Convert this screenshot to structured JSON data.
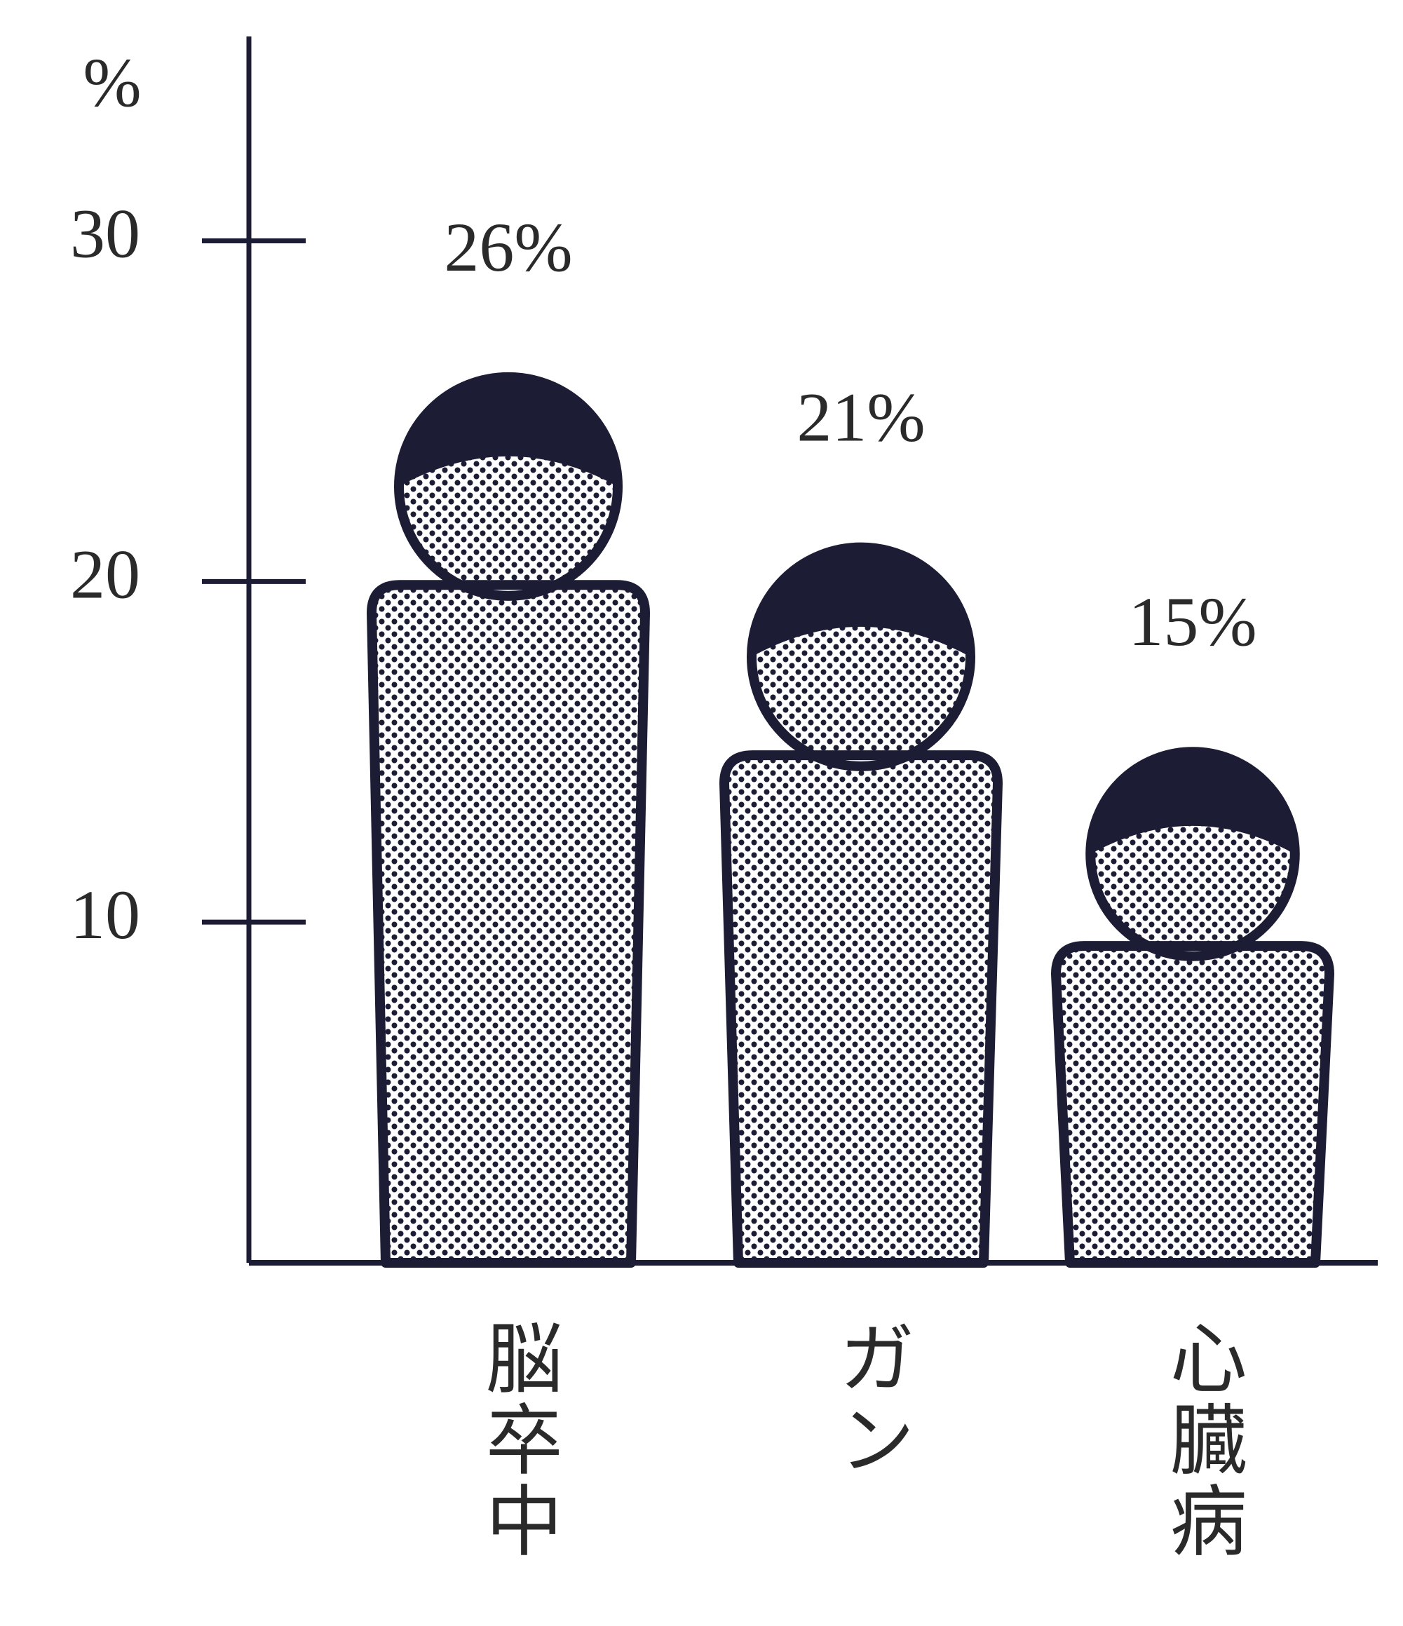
{
  "chart_data": {
    "type": "pictograph",
    "y_label": "%",
    "categories": [
      "脳卒中",
      "ガン",
      "心臓病"
    ],
    "values": [
      26,
      21,
      15
    ],
    "value_labels": [
      "26%",
      "21%",
      "15%"
    ],
    "color": "#1c1c34",
    "ylim": [
      0,
      36
    ],
    "yticks": [
      10,
      20,
      30
    ]
  }
}
